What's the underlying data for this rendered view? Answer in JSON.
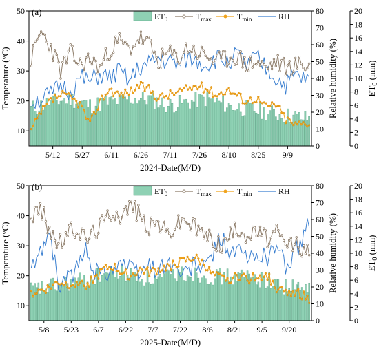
{
  "chart_data": [
    {
      "type": "bar+line",
      "panel_label": "(a)",
      "xlabel": "2024-Date(M/D)",
      "ylabel_left": "Temperature (°C)",
      "ylabel_right1": "Relative humidity (%)",
      "ylabel_right2_main": "ET",
      "ylabel_right2_sub": "0",
      "ylabel_right2_rest": " (mm)",
      "x_ticks": [
        "5/12",
        "5/27",
        "6/11",
        "6/26",
        "7/11",
        "7/26",
        "8/10",
        "8/25",
        "9/9"
      ],
      "x_tick_days": [
        11,
        26,
        41,
        56,
        71,
        86,
        101,
        116,
        131
      ],
      "n_days": 143,
      "y_left_ticks": [
        10,
        20,
        30,
        40,
        50
      ],
      "y_left_range": [
        5,
        50
      ],
      "y_rh_ticks": [
        0,
        10,
        20,
        30,
        40,
        50,
        60,
        70,
        80
      ],
      "y_rh_range": [
        0,
        80
      ],
      "y_et_ticks": [
        0,
        2,
        4,
        6,
        8,
        10,
        12,
        14,
        16,
        18,
        20
      ],
      "y_et_range": [
        0,
        20
      ],
      "legend": [
        {
          "main": "ET",
          "sub": "0",
          "kind": "bar",
          "color": "#8fd1b4"
        },
        {
          "main": "T",
          "sub": "max",
          "kind": "line-marker",
          "color": "#8c7b68"
        },
        {
          "main": "T",
          "sub": "min",
          "kind": "line-marker",
          "color": "#f0a31c"
        },
        {
          "main": "RH",
          "sub": "",
          "kind": "line",
          "color": "#3a7fd0"
        }
      ],
      "series_tmax": {
        "anchors_day": [
          0,
          5,
          10,
          15,
          20,
          25,
          30,
          35,
          40,
          45,
          50,
          55,
          60,
          65,
          70,
          75,
          80,
          85,
          90,
          95,
          100,
          105,
          110,
          115,
          120,
          125,
          130,
          135,
          142
        ],
        "anchors_val": [
          34,
          43,
          38,
          30,
          36,
          32,
          34,
          31,
          37,
          40,
          37,
          41,
          39,
          33,
          36,
          34,
          38,
          36,
          35,
          33,
          34,
          35,
          32,
          33,
          31,
          33,
          31,
          32,
          32
        ]
      },
      "series_tmin": {
        "anchors_day": [
          0,
          5,
          10,
          15,
          20,
          25,
          30,
          35,
          40,
          45,
          50,
          55,
          60,
          65,
          70,
          75,
          80,
          85,
          90,
          95,
          100,
          105,
          110,
          115,
          120,
          125,
          130,
          135,
          142
        ],
        "anchors_val": [
          10,
          16,
          20,
          22,
          21,
          19,
          12,
          20,
          24,
          22,
          23,
          25,
          24,
          21,
          22,
          23,
          24,
          25,
          24,
          22,
          24,
          22,
          20,
          21,
          18,
          19,
          14,
          12,
          13
        ]
      },
      "series_rh": {
        "anchors_day": [
          0,
          5,
          10,
          15,
          20,
          25,
          30,
          35,
          40,
          45,
          50,
          55,
          60,
          65,
          70,
          75,
          80,
          85,
          90,
          95,
          100,
          105,
          110,
          115,
          120,
          125,
          130,
          135,
          142
        ],
        "anchors_val": [
          26,
          28,
          30,
          36,
          32,
          40,
          38,
          42,
          40,
          44,
          38,
          46,
          48,
          52,
          50,
          48,
          52,
          50,
          48,
          52,
          50,
          54,
          48,
          52,
          46,
          40,
          36,
          42,
          38
        ]
      },
      "series_et0": {
        "anchors_day": [
          0,
          10,
          20,
          30,
          40,
          50,
          60,
          70,
          80,
          90,
          100,
          110,
          120,
          130,
          142
        ],
        "anchors_val": [
          5.5,
          6.5,
          7,
          6,
          6.5,
          7,
          7,
          6,
          6.5,
          7,
          6,
          5.5,
          5,
          4.5,
          4
        ]
      }
    },
    {
      "type": "bar+line",
      "panel_label": "(b)",
      "xlabel": "2025-Date(M/D)",
      "ylabel_left": "Temperature (°C)",
      "ylabel_right1": "Relative humidity (%)",
      "ylabel_right2_main": "ET",
      "ylabel_right2_sub": "0",
      "ylabel_right2_rest": " (mm)",
      "x_ticks": [
        "5/8",
        "5/23",
        "6/7",
        "6/22",
        "7/7",
        "7/22",
        "8/6",
        "8/21",
        "9/5",
        "9/20"
      ],
      "x_tick_days": [
        7,
        22,
        37,
        52,
        67,
        82,
        97,
        112,
        127,
        142
      ],
      "n_days": 154,
      "y_left_ticks": [
        10,
        20,
        30,
        40,
        50
      ],
      "y_left_range": [
        5,
        50
      ],
      "y_rh_ticks": [
        0,
        10,
        20,
        30,
        40,
        50,
        60,
        70,
        80
      ],
      "y_rh_range": [
        0,
        80
      ],
      "y_et_ticks": [
        0,
        2,
        4,
        6,
        8,
        10,
        12,
        14,
        16,
        18,
        20
      ],
      "y_et_range": [
        0,
        20
      ],
      "legend": [
        {
          "main": "ET",
          "sub": "0",
          "kind": "bar",
          "color": "#8fd1b4"
        },
        {
          "main": "T",
          "sub": "max",
          "kind": "line-marker",
          "color": "#8c7b68"
        },
        {
          "main": "T",
          "sub": "min",
          "kind": "line-marker",
          "color": "#f0a31c"
        },
        {
          "main": "RH",
          "sub": "",
          "kind": "line",
          "color": "#3a7fd0"
        }
      ],
      "series_tmax": {
        "anchors_day": [
          0,
          5,
          10,
          15,
          20,
          25,
          30,
          35,
          40,
          45,
          50,
          55,
          60,
          65,
          70,
          75,
          80,
          85,
          90,
          95,
          100,
          105,
          110,
          115,
          120,
          125,
          130,
          135,
          140,
          145,
          153
        ],
        "anchors_val": [
          40,
          42,
          36,
          30,
          34,
          36,
          32,
          35,
          38,
          42,
          40,
          44,
          40,
          36,
          38,
          34,
          37,
          39,
          36,
          34,
          32,
          30,
          34,
          36,
          33,
          35,
          32,
          34,
          30,
          31,
          27
        ]
      },
      "series_tmin": {
        "anchors_day": [
          0,
          5,
          10,
          15,
          20,
          25,
          30,
          35,
          40,
          45,
          50,
          55,
          60,
          65,
          70,
          75,
          80,
          85,
          90,
          95,
          100,
          105,
          110,
          115,
          120,
          125,
          130,
          135,
          140,
          145,
          153
        ],
        "anchors_val": [
          14,
          15,
          16,
          18,
          17,
          18,
          17,
          19,
          22,
          23,
          21,
          20,
          22,
          21,
          22,
          23,
          24,
          25,
          26,
          24,
          20,
          19,
          19,
          20,
          19,
          20,
          20,
          16,
          14,
          15,
          12
        ]
      },
      "series_rh": {
        "anchors_day": [
          0,
          5,
          10,
          15,
          20,
          25,
          30,
          35,
          40,
          45,
          50,
          55,
          60,
          65,
          70,
          75,
          80,
          85,
          90,
          95,
          100,
          105,
          110,
          115,
          120,
          125,
          130,
          135,
          140,
          145,
          153
        ],
        "anchors_val": [
          30,
          40,
          55,
          20,
          25,
          30,
          42,
          30,
          28,
          32,
          35,
          30,
          28,
          33,
          30,
          35,
          30,
          27,
          34,
          30,
          40,
          50,
          38,
          42,
          35,
          40,
          38,
          45,
          32,
          40,
          58
        ]
      },
      "series_et0": {
        "anchors_day": [
          0,
          10,
          20,
          30,
          40,
          50,
          60,
          70,
          80,
          90,
          100,
          110,
          120,
          130,
          140,
          153
        ],
        "anchors_val": [
          4.5,
          5,
          5.5,
          6,
          7,
          7,
          6.5,
          6,
          7,
          7,
          6.5,
          6.5,
          6.5,
          6,
          5,
          4.5
        ]
      }
    }
  ]
}
